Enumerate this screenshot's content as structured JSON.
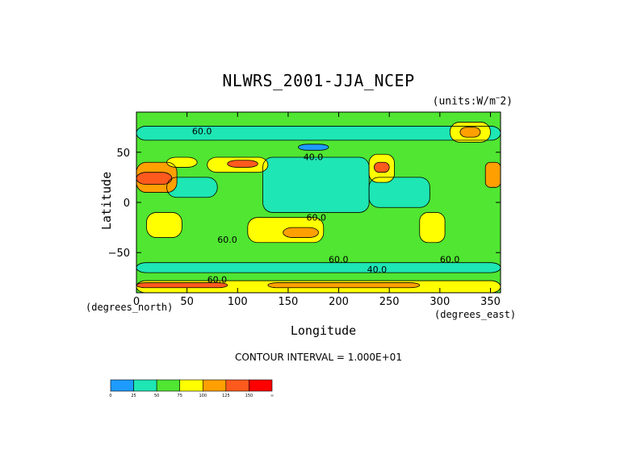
{
  "chart_data": {
    "type": "heatmap",
    "title": "NLWRS_2001-JJA_NCEP",
    "units_note": "(units:W/m^2)",
    "xlabel": "Longitude",
    "ylabel": "Latitude",
    "x_units": "(degrees_east)",
    "y_units": "(degrees_north)",
    "xlim": [
      0,
      360
    ],
    "ylim": [
      -90,
      90
    ],
    "xticks": [
      0,
      50,
      100,
      150,
      200,
      250,
      300,
      350
    ],
    "yticks": [
      -50,
      0,
      50
    ],
    "contour_interval": "CONTOUR INTERVAL = 1.000E+01",
    "contour_labels": [
      "60.0",
      "40.0",
      "60.0",
      "60.0",
      "60.0",
      "40.0",
      "60.0",
      "60.0"
    ],
    "colorbar": {
      "ticks": [
        "0",
        "25",
        "50",
        "75",
        "100",
        "125",
        "150",
        "∞"
      ],
      "colors": [
        "#1e9bff",
        "#1ee6b4",
        "#50e632",
        "#ffff00",
        "#ffa000",
        "#ff5a1e",
        "#ff0000"
      ]
    },
    "regions": [
      {
        "lon": [
          0,
          360
        ],
        "lat": [
          -90,
          90
        ],
        "level": 2
      },
      {
        "lon": [
          125,
          230
        ],
        "lat": [
          -10,
          45
        ],
        "level": 1
      },
      {
        "lon": [
          230,
          290
        ],
        "lat": [
          -5,
          25
        ],
        "level": 1
      },
      {
        "lon": [
          30,
          80
        ],
        "lat": [
          5,
          25
        ],
        "level": 1
      },
      {
        "lon": [
          160,
          190
        ],
        "lat": [
          52,
          58
        ],
        "level": 0
      },
      {
        "lon": [
          0,
          360
        ],
        "lat": [
          62,
          76
        ],
        "level": 1
      },
      {
        "lon": [
          0,
          360
        ],
        "lat": [
          -70,
          -60
        ],
        "level": 1
      },
      {
        "lon": [
          0,
          40
        ],
        "lat": [
          10,
          40
        ],
        "level": 4
      },
      {
        "lon": [
          0,
          35
        ],
        "lat": [
          18,
          30
        ],
        "level": 5
      },
      {
        "lon": [
          30,
          60
        ],
        "lat": [
          35,
          45
        ],
        "level": 3
      },
      {
        "lon": [
          70,
          130
        ],
        "lat": [
          30,
          45
        ],
        "level": 3
      },
      {
        "lon": [
          90,
          120
        ],
        "lat": [
          35,
          42
        ],
        "level": 5
      },
      {
        "lon": [
          10,
          45
        ],
        "lat": [
          -35,
          -10
        ],
        "level": 3
      },
      {
        "lon": [
          110,
          185
        ],
        "lat": [
          -40,
          -15
        ],
        "level": 3
      },
      {
        "lon": [
          145,
          180
        ],
        "lat": [
          -35,
          -25
        ],
        "level": 4
      },
      {
        "lon": [
          230,
          255
        ],
        "lat": [
          20,
          48
        ],
        "level": 3
      },
      {
        "lon": [
          235,
          250
        ],
        "lat": [
          30,
          40
        ],
        "level": 5
      },
      {
        "lon": [
          280,
          305
        ],
        "lat": [
          -40,
          -10
        ],
        "level": 3
      },
      {
        "lon": [
          345,
          360
        ],
        "lat": [
          15,
          40
        ],
        "level": 4
      },
      {
        "lon": [
          310,
          350
        ],
        "lat": [
          60,
          80
        ],
        "level": 3
      },
      {
        "lon": [
          320,
          340
        ],
        "lat": [
          65,
          75
        ],
        "level": 4
      },
      {
        "lon": [
          0,
          360
        ],
        "lat": [
          -90,
          -78
        ],
        "level": 3
      },
      {
        "lon": [
          0,
          90
        ],
        "lat": [
          -85,
          -80
        ],
        "level": 5
      },
      {
        "lon": [
          130,
          280
        ],
        "lat": [
          -85,
          -80
        ],
        "level": 4
      }
    ]
  }
}
